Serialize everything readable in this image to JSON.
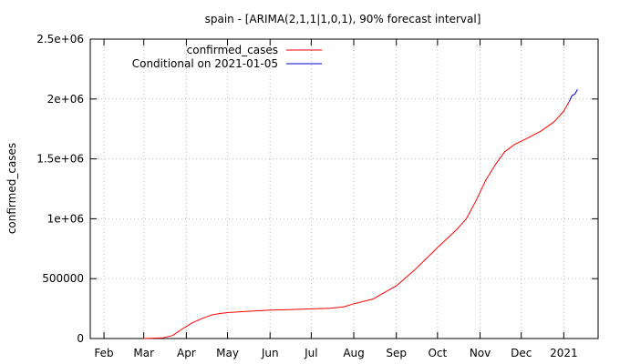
{
  "chart_data": {
    "type": "line",
    "title": "spain -  [ARIMA(2,1,1|1,0,1), 90% forecast interval]",
    "xlabel": "",
    "ylabel": "confirmed_cases",
    "ylim": [
      0,
      2500000
    ],
    "yticks": [
      0,
      500000,
      1000000,
      1500000,
      2000000,
      2500000
    ],
    "ytick_labels": [
      "0",
      "500000",
      "1e+06",
      "1.5e+06",
      "2e+06",
      "2.5e+06"
    ],
    "xlim": [
      "2020-01-22",
      "2021-01-26"
    ],
    "xticks": [
      "2020-02-01",
      "2020-03-01",
      "2020-04-01",
      "2020-05-01",
      "2020-06-01",
      "2020-07-01",
      "2020-08-01",
      "2020-09-01",
      "2020-10-01",
      "2020-11-01",
      "2020-12-01",
      "2021-01-01"
    ],
    "xtick_labels": [
      "Feb",
      "Mar",
      "Apr",
      "May",
      "Jun",
      "Jul",
      "Aug",
      "Sep",
      "Oct",
      "Nov",
      "Dec",
      "2021"
    ],
    "grid": true,
    "legend_position": "top-left",
    "series": [
      {
        "name": "confirmed_cases",
        "color": "#ff0000",
        "points": [
          [
            "2020-03-01",
            0
          ],
          [
            "2020-03-15",
            6000
          ],
          [
            "2020-03-22",
            25000
          ],
          [
            "2020-03-29",
            80000
          ],
          [
            "2020-04-05",
            130000
          ],
          [
            "2020-04-12",
            165000
          ],
          [
            "2020-04-19",
            195000
          ],
          [
            "2020-04-26",
            210000
          ],
          [
            "2020-05-03",
            218000
          ],
          [
            "2020-05-17",
            228000
          ],
          [
            "2020-06-01",
            238000
          ],
          [
            "2020-06-15",
            242000
          ],
          [
            "2020-07-01",
            248000
          ],
          [
            "2020-07-15",
            252000
          ],
          [
            "2020-07-25",
            265000
          ],
          [
            "2020-08-01",
            290000
          ],
          [
            "2020-08-15",
            330000
          ],
          [
            "2020-09-01",
            440000
          ],
          [
            "2020-09-15",
            580000
          ],
          [
            "2020-10-01",
            760000
          ],
          [
            "2020-10-15",
            910000
          ],
          [
            "2020-10-22",
            1000000
          ],
          [
            "2020-10-29",
            1150000
          ],
          [
            "2020-11-05",
            1320000
          ],
          [
            "2020-11-12",
            1450000
          ],
          [
            "2020-11-19",
            1560000
          ],
          [
            "2020-11-26",
            1620000
          ],
          [
            "2020-12-05",
            1670000
          ],
          [
            "2020-12-15",
            1730000
          ],
          [
            "2020-12-25",
            1810000
          ],
          [
            "2021-01-01",
            1900000
          ],
          [
            "2021-01-05",
            1980000
          ]
        ]
      },
      {
        "name": "Conditional on 2021-01-05",
        "color": "#0000cc",
        "points": [
          [
            "2021-01-05",
            1980000
          ],
          [
            "2021-01-07",
            2030000
          ],
          [
            "2021-01-09",
            2040000
          ],
          [
            "2021-01-11",
            2080000
          ]
        ]
      }
    ]
  }
}
